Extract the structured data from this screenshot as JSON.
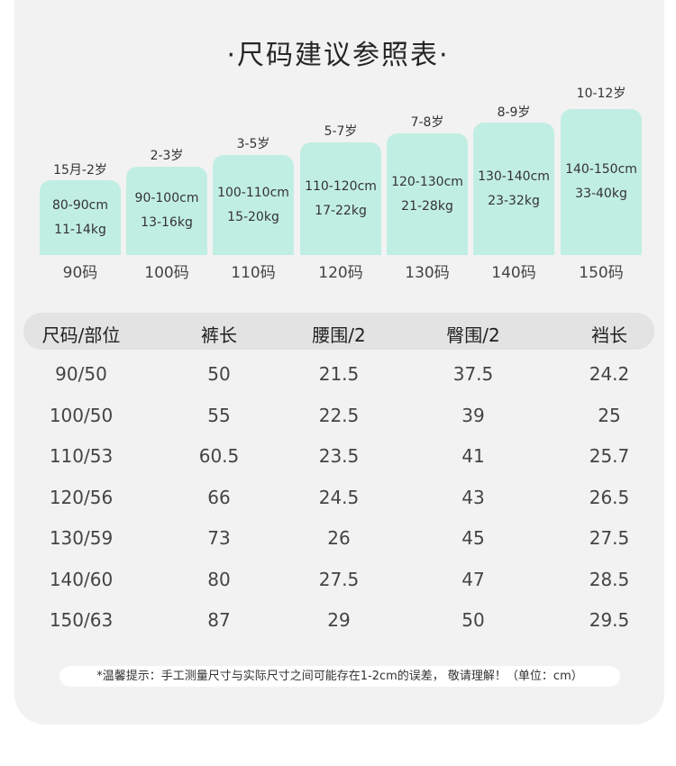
{
  "title": "·尺码建议参照表·",
  "sizes": [
    {
      "age": "15月-2岁",
      "height": "80-90cm",
      "weight": "11-14kg",
      "label": "90码"
    },
    {
      "age": "2-3岁",
      "height": "90-100cm",
      "weight": "13-16kg",
      "label": "100码"
    },
    {
      "age": "3-5岁",
      "height": "100-110cm",
      "weight": "15-20kg",
      "label": "110码"
    },
    {
      "age": "5-7岁",
      "height": "110-120cm",
      "weight": "17-22kg",
      "label": "120码"
    },
    {
      "age": "7-8岁",
      "height": "120-130cm",
      "weight": "21-28kg",
      "label": "130码"
    },
    {
      "age": "8-9岁",
      "height": "130-140cm",
      "weight": "23-32kg",
      "label": "140码"
    },
    {
      "age": "10-12岁",
      "height": "140-150cm",
      "weight": "33-40kg",
      "label": "150码"
    }
  ],
  "table": {
    "headers": [
      "尺码/部位",
      "裤长",
      "腰围/2",
      "臀围/2",
      "裆长"
    ],
    "rows": [
      [
        "90/50",
        "50",
        "21.5",
        "37.5",
        "24.2"
      ],
      [
        "100/50",
        "55",
        "22.5",
        "39",
        "25"
      ],
      [
        "110/53",
        "60.5",
        "23.5",
        "41",
        "25.7"
      ],
      [
        "120/56",
        "66",
        "24.5",
        "43",
        "26.5"
      ],
      [
        "130/59",
        "73",
        "26",
        "45",
        "27.5"
      ],
      [
        "140/60",
        "80",
        "27.5",
        "47",
        "28.5"
      ],
      [
        "150/63",
        "87",
        "29",
        "50",
        "29.5"
      ]
    ]
  },
  "note": "*温馨提示：手工测量尺寸与实际尺寸之间可能存在1-2cm的误差， 敬请理解！（单位：cm）",
  "colors": {
    "bar": "#c1eee3",
    "card": "#f2f2f2",
    "header": "#e3e3e3"
  }
}
